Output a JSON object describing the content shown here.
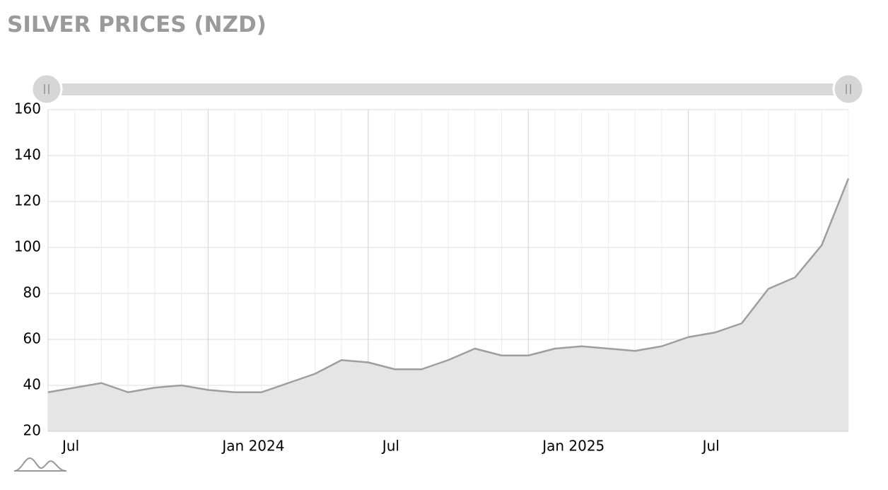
{
  "chart_data": {
    "type": "area",
    "title": "SILVER PRICES (NZD)",
    "x": [
      "2023-07",
      "2023-08",
      "2023-09",
      "2023-10",
      "2023-11",
      "2023-12",
      "2024-01",
      "2024-02",
      "2024-03",
      "2024-04",
      "2024-05",
      "2024-06",
      "2024-07",
      "2024-08",
      "2024-09",
      "2024-10",
      "2024-11",
      "2024-12",
      "2025-01",
      "2025-02",
      "2025-03",
      "2025-04",
      "2025-05",
      "2025-06",
      "2025-07",
      "2025-08",
      "2025-09",
      "2025-10",
      "2025-11",
      "2025-12",
      "2026-01"
    ],
    "series": [
      {
        "name": "Silver",
        "color": "#9e9e9e",
        "fill": "#e5e5e5",
        "values": [
          37,
          39,
          41,
          37,
          39,
          40,
          38,
          37,
          37,
          41,
          45,
          51,
          50,
          47,
          47,
          51,
          56,
          53,
          53,
          56,
          57,
          56,
          55,
          57,
          61,
          63,
          67,
          82,
          87,
          101,
          130
        ]
      }
    ],
    "xlim": [
      "2023-07",
      "2026-01"
    ],
    "xticks": [
      {
        "value": "2023-07",
        "label": "Jul"
      },
      {
        "value": "2024-01",
        "label": "Jan 2024"
      },
      {
        "value": "2024-07",
        "label": "Jul"
      },
      {
        "value": "2025-01",
        "label": "Jan 2025"
      },
      {
        "value": "2025-07",
        "label": "Jul"
      }
    ],
    "ylim": [
      20,
      160
    ],
    "yticks": [
      20,
      40,
      60,
      80,
      100,
      120,
      140,
      160
    ],
    "grid": true
  }
}
